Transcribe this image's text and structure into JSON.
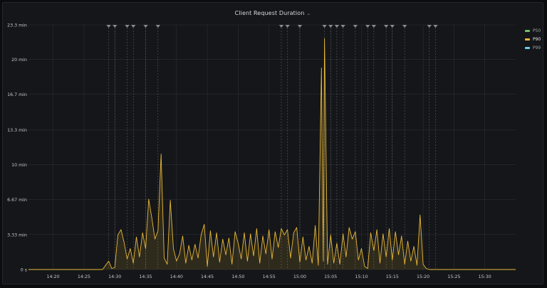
{
  "panel": {
    "title": "Client Request Duration",
    "caret": "⌄"
  },
  "colors": {
    "background": "#141619",
    "grid": "#2c2e33",
    "p50": "#73bf69",
    "p90": "#eab839",
    "p99": "#6ed0e0",
    "annotation": "#8a8b8d"
  },
  "legend": [
    {
      "label": "P50",
      "color": "#73bf69"
    },
    {
      "label": "P90",
      "color": "#eab839"
    },
    {
      "label": "P99",
      "color": "#6ed0e0"
    }
  ],
  "chart_data": {
    "type": "line",
    "title": "Client Request Duration",
    "xlabel": "",
    "ylabel": "",
    "y_unit": "min",
    "ylim": [
      0,
      23.3
    ],
    "y_ticks": [
      {
        "value": 0,
        "label": "0 s"
      },
      {
        "value": 3.33,
        "label": "3.33 min"
      },
      {
        "value": 6.67,
        "label": "6.67 min"
      },
      {
        "value": 10,
        "label": "10 min"
      },
      {
        "value": 13.3,
        "label": "13.3 min"
      },
      {
        "value": 16.7,
        "label": "16.7 min"
      },
      {
        "value": 20,
        "label": "20 min"
      },
      {
        "value": 23.3,
        "label": "23.3 min"
      }
    ],
    "xlim": [
      "14:16",
      "15:35"
    ],
    "x_ticks": [
      "14:20",
      "14:25",
      "14:30",
      "14:35",
      "14:40",
      "14:45",
      "14:50",
      "14:55",
      "15:00",
      "15:05",
      "15:10",
      "15:15",
      "15:20",
      "15:25",
      "15:30"
    ],
    "grid": true,
    "legend_position": "right",
    "annotations": [
      "14:29",
      "14:30",
      "14:32",
      "14:33",
      "14:35",
      "14:37",
      "14:57",
      "14:58",
      "15:00",
      "15:04",
      "15:05",
      "15:06",
      "15:07",
      "15:09",
      "15:11",
      "15:12",
      "15:14",
      "15:15",
      "15:17",
      "15:21",
      "15:22"
    ],
    "series": [
      {
        "name": "P90",
        "points": [
          [
            "14:16",
            0
          ],
          [
            "14:28",
            0
          ],
          [
            "14:29",
            0.8
          ],
          [
            "14:29.5",
            0.1
          ],
          [
            "14:30",
            0.2
          ],
          [
            "14:30.5",
            3.3
          ],
          [
            "14:31",
            3.8
          ],
          [
            "14:31.5",
            2.6
          ],
          [
            "14:32",
            1.0
          ],
          [
            "14:32.5",
            2.0
          ],
          [
            "14:33",
            0.6
          ],
          [
            "14:33.5",
            3.1
          ],
          [
            "14:34",
            1.2
          ],
          [
            "14:34.5",
            3.5
          ],
          [
            "14:35",
            2.0
          ],
          [
            "14:35.5",
            6.7
          ],
          [
            "14:36",
            4.9
          ],
          [
            "14:36.5",
            2.9
          ],
          [
            "14:37",
            3.7
          ],
          [
            "14:37.5",
            11.0
          ],
          [
            "14:38",
            1.1
          ],
          [
            "14:38.5",
            0.5
          ],
          [
            "14:39",
            6.6
          ],
          [
            "14:39.5",
            2.0
          ],
          [
            "14:40",
            0.8
          ],
          [
            "14:40.5",
            1.5
          ],
          [
            "14:41",
            3.2
          ],
          [
            "14:41.5",
            0.6
          ],
          [
            "14:42",
            2.3
          ],
          [
            "14:42.5",
            0.9
          ],
          [
            "14:43",
            2.4
          ],
          [
            "14:43.5",
            1.1
          ],
          [
            "14:44",
            3.3
          ],
          [
            "14:44.5",
            4.3
          ],
          [
            "14:45",
            0.3
          ],
          [
            "14:45.5",
            3.7
          ],
          [
            "14:46",
            1.2
          ],
          [
            "14:46.5",
            3.5
          ],
          [
            "14:47",
            0.7
          ],
          [
            "14:47.5",
            2.9
          ],
          [
            "14:48",
            1.4
          ],
          [
            "14:48.5",
            3.0
          ],
          [
            "14:49",
            0.5
          ],
          [
            "14:49.5",
            3.6
          ],
          [
            "14:50",
            2.5
          ],
          [
            "14:50.5",
            1.0
          ],
          [
            "14:51",
            3.5
          ],
          [
            "14:51.5",
            0.8
          ],
          [
            "14:52",
            3.4
          ],
          [
            "14:52.5",
            1.3
          ],
          [
            "14:53",
            3.9
          ],
          [
            "14:53.5",
            0.6
          ],
          [
            "14:54",
            3.2
          ],
          [
            "14:54.5",
            1.5
          ],
          [
            "14:55",
            3.8
          ],
          [
            "14:55.5",
            1.0
          ],
          [
            "14:56",
            3.6
          ],
          [
            "14:56.5",
            2.1
          ],
          [
            "14:57",
            3.9
          ],
          [
            "14:57.5",
            3.3
          ],
          [
            "14:58",
            3.8
          ],
          [
            "14:58.5",
            1.1
          ],
          [
            "14:59",
            3.5
          ],
          [
            "14:59.5",
            4.0
          ],
          [
            "15:00",
            0.7
          ],
          [
            "15:00.5",
            3.1
          ],
          [
            "15:01",
            0.9
          ],
          [
            "15:01.5",
            2.2
          ],
          [
            "15:02",
            0.6
          ],
          [
            "15:02.5",
            4.2
          ],
          [
            "15:03",
            0.4
          ],
          [
            "15:03.5",
            19.2
          ],
          [
            "15:03.8",
            0.8
          ],
          [
            "15:04",
            22.0
          ],
          [
            "15:04.5",
            0.5
          ],
          [
            "15:05",
            3.3
          ],
          [
            "15:05.5",
            0.6
          ],
          [
            "15:06",
            2.5
          ],
          [
            "15:06.5",
            0.5
          ],
          [
            "15:07",
            3.4
          ],
          [
            "15:07.5",
            1.2
          ],
          [
            "15:08",
            4.0
          ],
          [
            "15:08.5",
            2.9
          ],
          [
            "15:09",
            3.6
          ],
          [
            "15:09.5",
            0.9
          ],
          [
            "15:10",
            2.0
          ],
          [
            "15:10.5",
            0.3
          ],
          [
            "15:11",
            0.1
          ],
          [
            "15:11.5",
            3.5
          ],
          [
            "15:12",
            1.8
          ],
          [
            "15:12.5",
            3.8
          ],
          [
            "15:13",
            0.6
          ],
          [
            "15:13.5",
            3.4
          ],
          [
            "15:14",
            1.2
          ],
          [
            "15:14.5",
            3.9
          ],
          [
            "15:15",
            0.9
          ],
          [
            "15:15.5",
            3.6
          ],
          [
            "15:16",
            1.4
          ],
          [
            "15:16.5",
            3.2
          ],
          [
            "15:17",
            0.5
          ],
          [
            "15:17.5",
            2.7
          ],
          [
            "15:18",
            0.8
          ],
          [
            "15:18.5",
            2.2
          ],
          [
            "15:19",
            0.4
          ],
          [
            "15:19.5",
            5.2
          ],
          [
            "15:20",
            0.5
          ],
          [
            "15:20.5",
            0.1
          ],
          [
            "15:21",
            0
          ],
          [
            "15:35",
            0
          ]
        ]
      }
    ]
  }
}
